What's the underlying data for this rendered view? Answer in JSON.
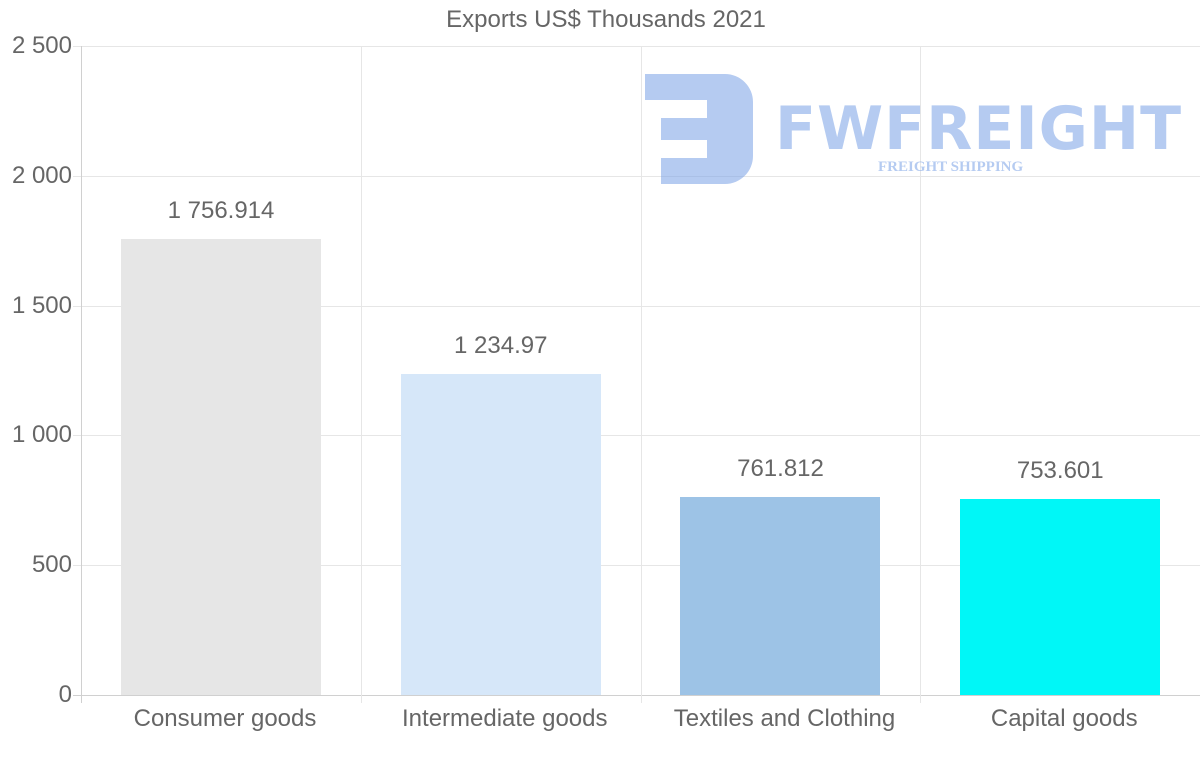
{
  "chart_data": {
    "type": "bar",
    "title": "Exports US$ Thousands 2021",
    "xlabel": "",
    "ylabel": "",
    "categories": [
      "Consumer goods",
      "Intermediate goods",
      "Textiles and Clothing",
      "Capital goods"
    ],
    "values": [
      1756.914,
      1234.97,
      761.812,
      753.601
    ],
    "value_labels": [
      "1 756.914",
      "1 234.97",
      "761.812",
      "753.601"
    ],
    "colors": [
      "#e6e6e6",
      "#d6e7f9",
      "#9dc3e6",
      "#00f7f7"
    ],
    "ylim": [
      0,
      2500
    ],
    "yticks": [
      0,
      500,
      1000,
      1500,
      2000,
      2500
    ],
    "ytick_labels": [
      "0",
      "500",
      "1 000",
      "1 500",
      "2 000",
      "2 500"
    ],
    "grid": true,
    "legend": null
  },
  "watermark": {
    "brand": "FWFREIGHT",
    "tagline": "FREIGHT SHIPPING"
  }
}
